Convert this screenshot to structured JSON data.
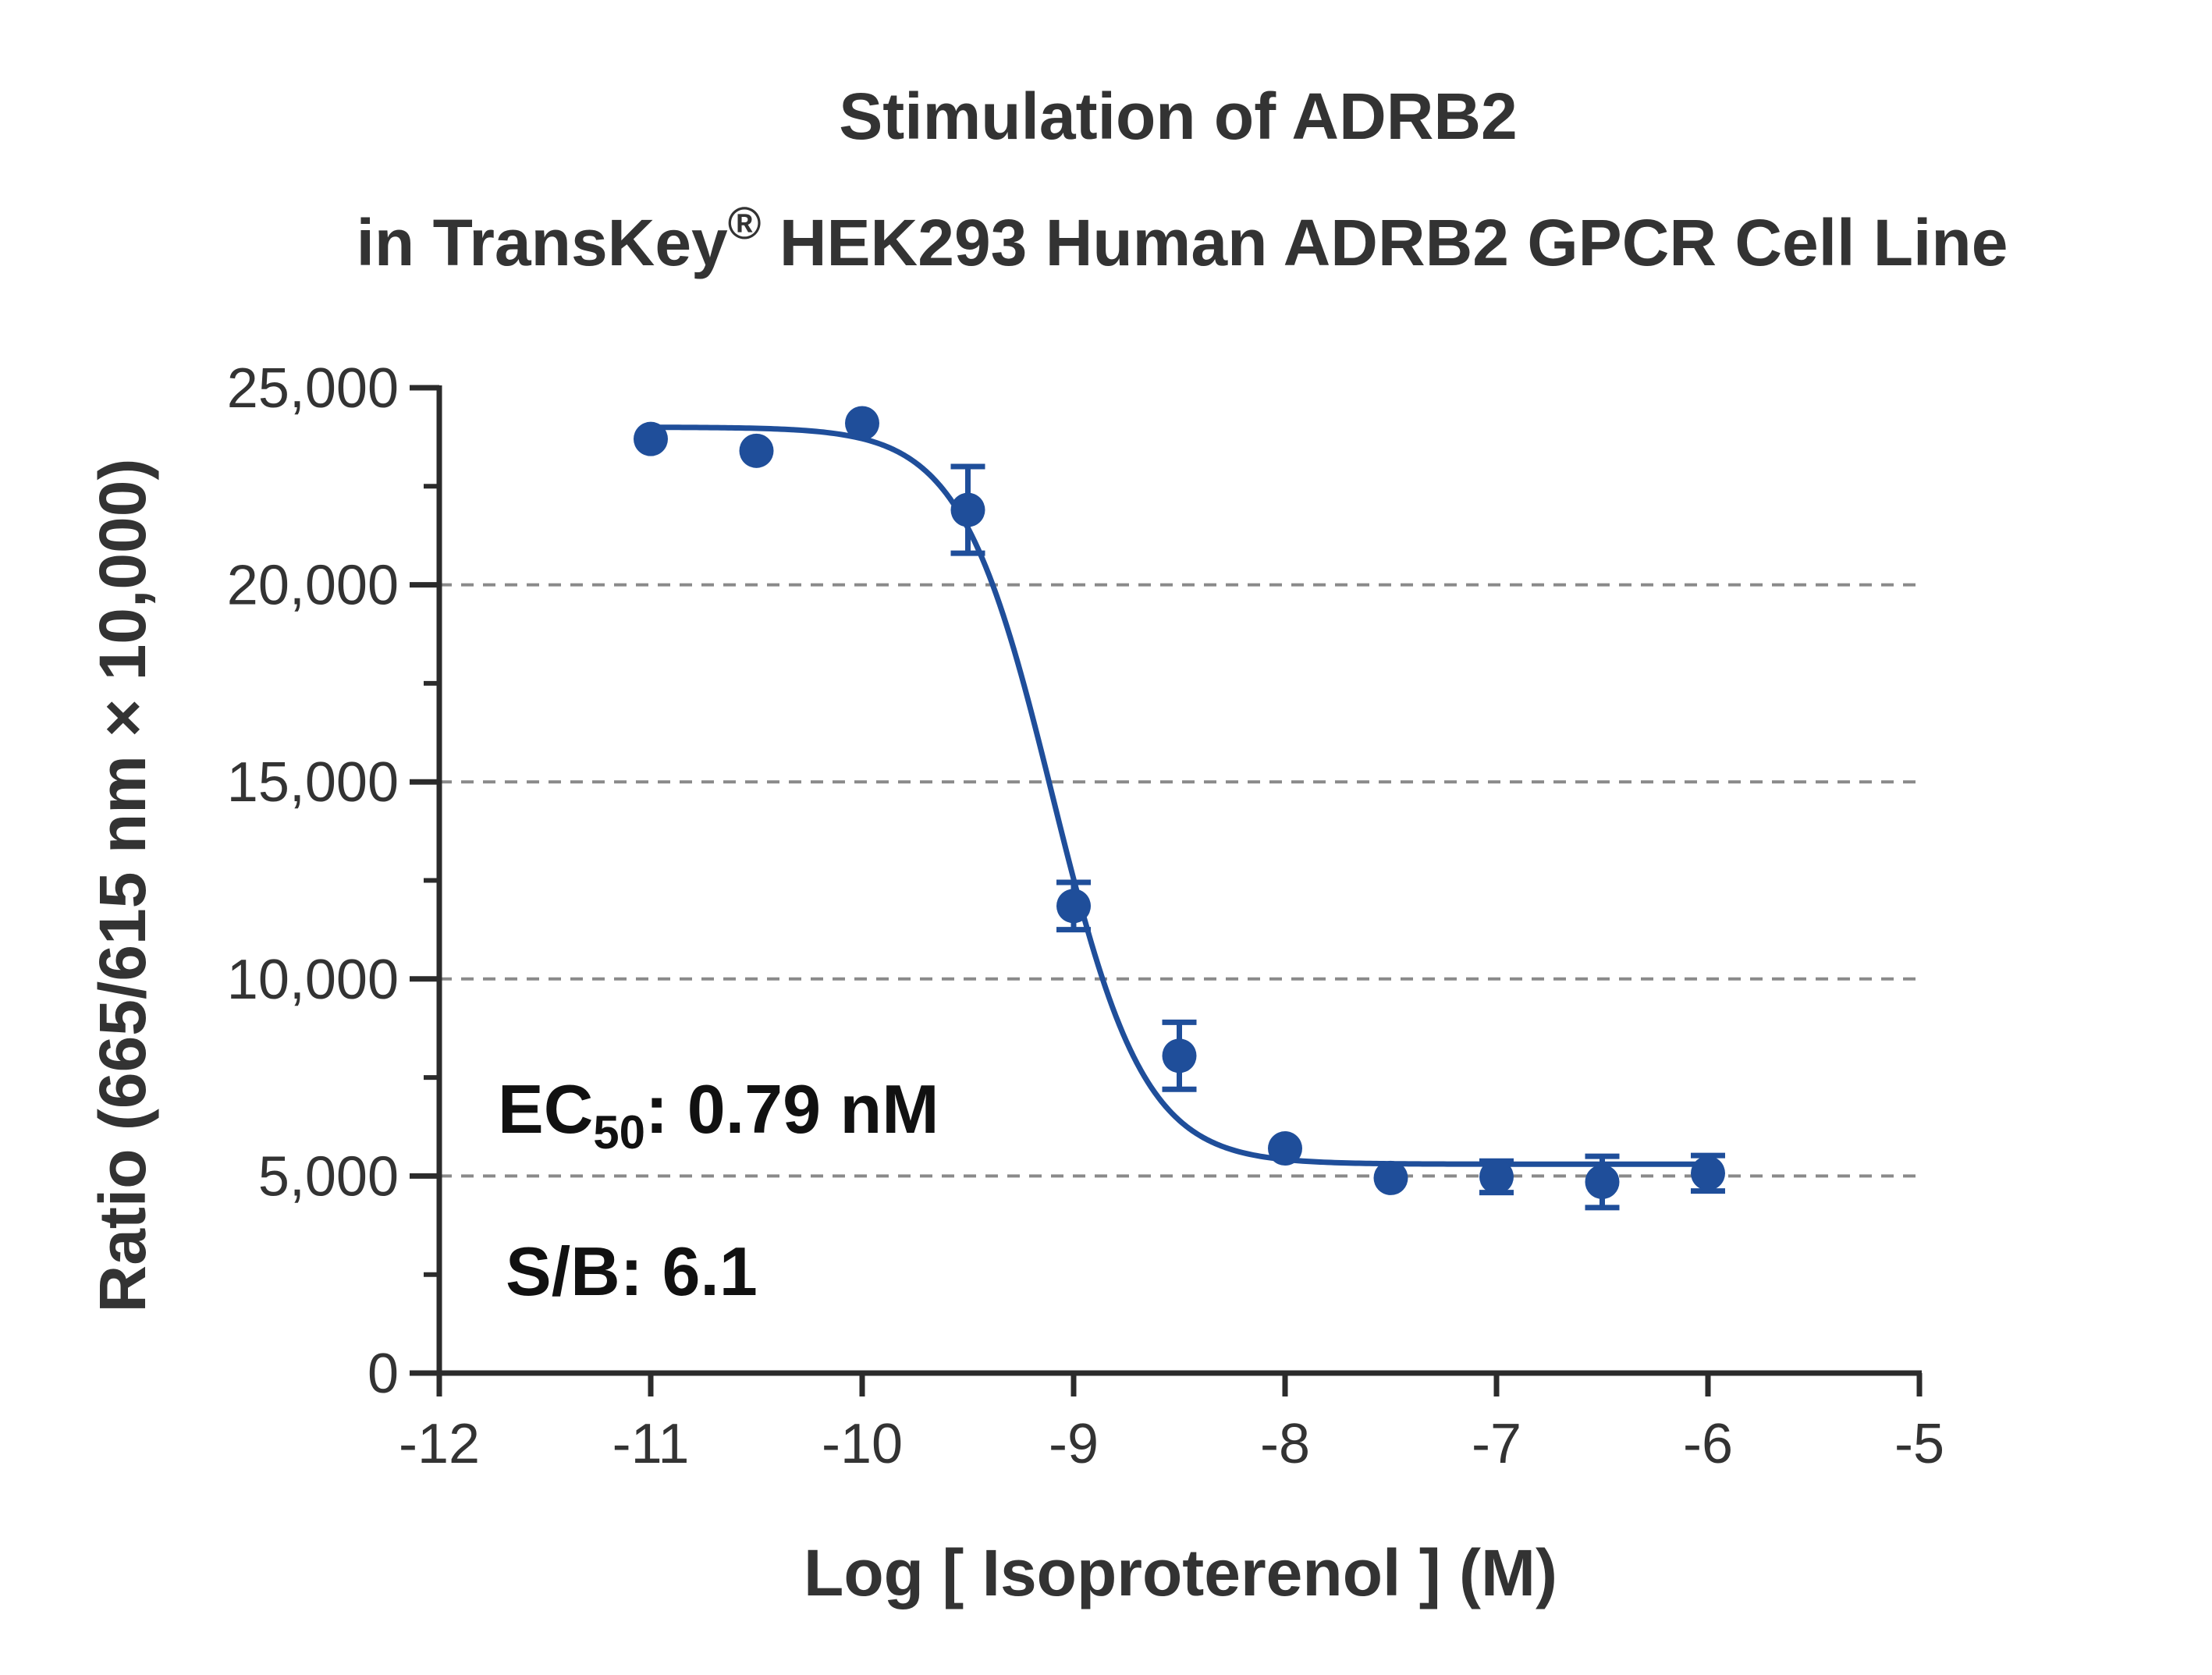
{
  "chart_data": {
    "type": "scatter",
    "title_line1": "Stimulation of  ADRB2",
    "title_line2_pre": "in TransKey",
    "title_line2_sup": "®",
    "title_line2_post": " HEK293 Human ADRB2 GPCR Cell Line",
    "xlabel": "Log [ Isoproterenol ]  (M)",
    "ylabel": "Ratio (665/615 nm × 10,000)",
    "xlim": [
      -12,
      -5
    ],
    "ylim": [
      0,
      25000
    ],
    "x_ticks": [
      -12,
      -11,
      -10,
      -9,
      -8,
      -7,
      -6,
      -5
    ],
    "x_tick_labels": [
      "-12",
      "-11",
      "-10",
      "-9",
      "-8",
      "-7",
      "-6",
      "-5"
    ],
    "y_ticks": [
      0,
      5000,
      10000,
      15000,
      20000,
      25000
    ],
    "y_tick_labels": [
      "0",
      "5,000",
      "10,000",
      "15,000",
      "20,000",
      "25,000"
    ],
    "y_minor_ticks": [
      2500,
      7500,
      12500,
      17500,
      22500
    ],
    "y_gridlines": [
      5000,
      10000,
      15000,
      20000
    ],
    "grid": "dashed horizontal",
    "series": [
      {
        "color": "#1f4e9a",
        "x": [
          -11,
          -10.5,
          -10,
          -9.5,
          -9,
          -8.5,
          -8,
          -7.5,
          -7,
          -6.5,
          -6
        ],
        "y": [
          23700,
          23400,
          24100,
          21900,
          11850,
          8050,
          5700,
          4950,
          4980,
          4850,
          5070
        ],
        "error": [
          0,
          0,
          0,
          1100,
          600,
          850,
          0,
          0,
          400,
          650,
          450
        ]
      }
    ],
    "fit": {
      "model": "4PL",
      "top": 24000,
      "bottom": 5300,
      "logEC50": -9.1,
      "hill": 2.0
    },
    "annotations": {
      "ec50_prefix": "EC",
      "ec50_sub": "50",
      "ec50_value": ": 0.79 nM",
      "sb": "S/B: 6.1"
    }
  }
}
